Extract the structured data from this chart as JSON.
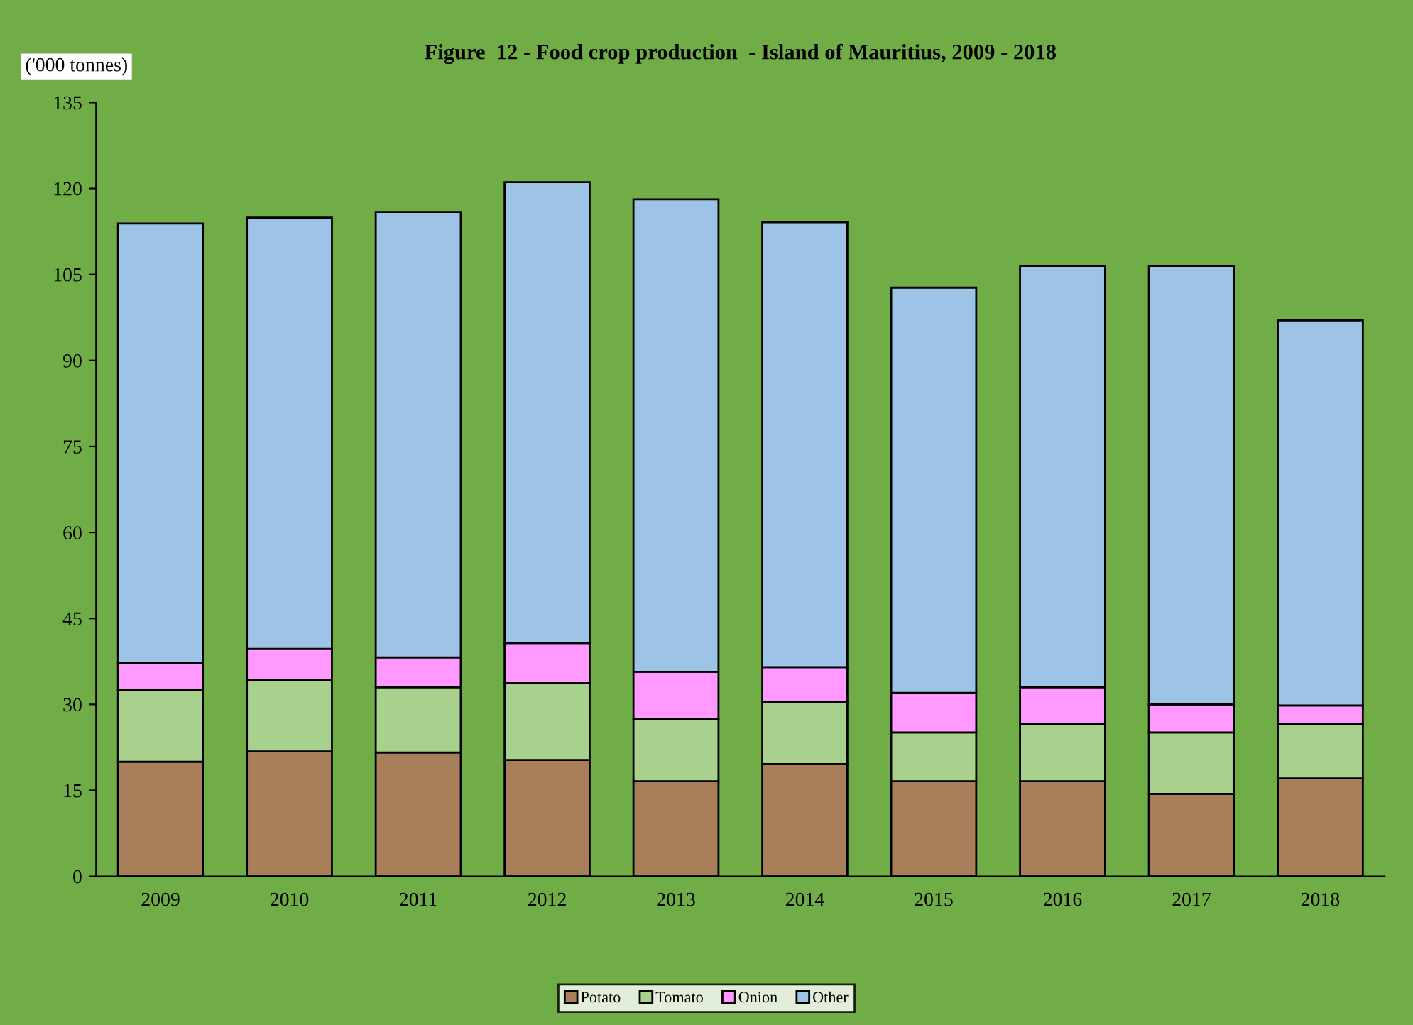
{
  "chart_data": {
    "type": "bar",
    "title": "Figure  12 - Food crop production  - Island of Mauritius, 2009 - 2018",
    "ylabel": "('000 tonnes)",
    "categories": [
      "2009",
      "2010",
      "2011",
      "2012",
      "2013",
      "2014",
      "2015",
      "2016",
      "2017",
      "2018"
    ],
    "stacked": true,
    "series": [
      {
        "name": "Potato",
        "color": "#a97e5a",
        "values": [
          20.0,
          21.8,
          21.6,
          20.3,
          16.6,
          19.6,
          16.6,
          16.6,
          14.4,
          17.1
        ]
      },
      {
        "name": "Tomato",
        "color": "#a9d18e",
        "values": [
          12.5,
          12.4,
          11.4,
          13.4,
          10.9,
          10.9,
          8.5,
          10.0,
          10.7,
          9.5
        ]
      },
      {
        "name": "Onion",
        "color": "#ff99ff",
        "values": [
          4.7,
          5.5,
          5.2,
          7.0,
          8.2,
          6.0,
          6.9,
          6.4,
          4.9,
          3.2
        ]
      },
      {
        "name": "Other",
        "color": "#9dc3e6",
        "values": [
          76.7,
          75.2,
          77.7,
          80.4,
          82.4,
          77.6,
          70.7,
          73.5,
          76.5,
          67.2
        ]
      }
    ],
    "ylim": [
      0,
      135
    ],
    "yticks": [
      0,
      15,
      30,
      45,
      60,
      75,
      90,
      105,
      120,
      135
    ],
    "grid": false,
    "legend": "bottom"
  }
}
